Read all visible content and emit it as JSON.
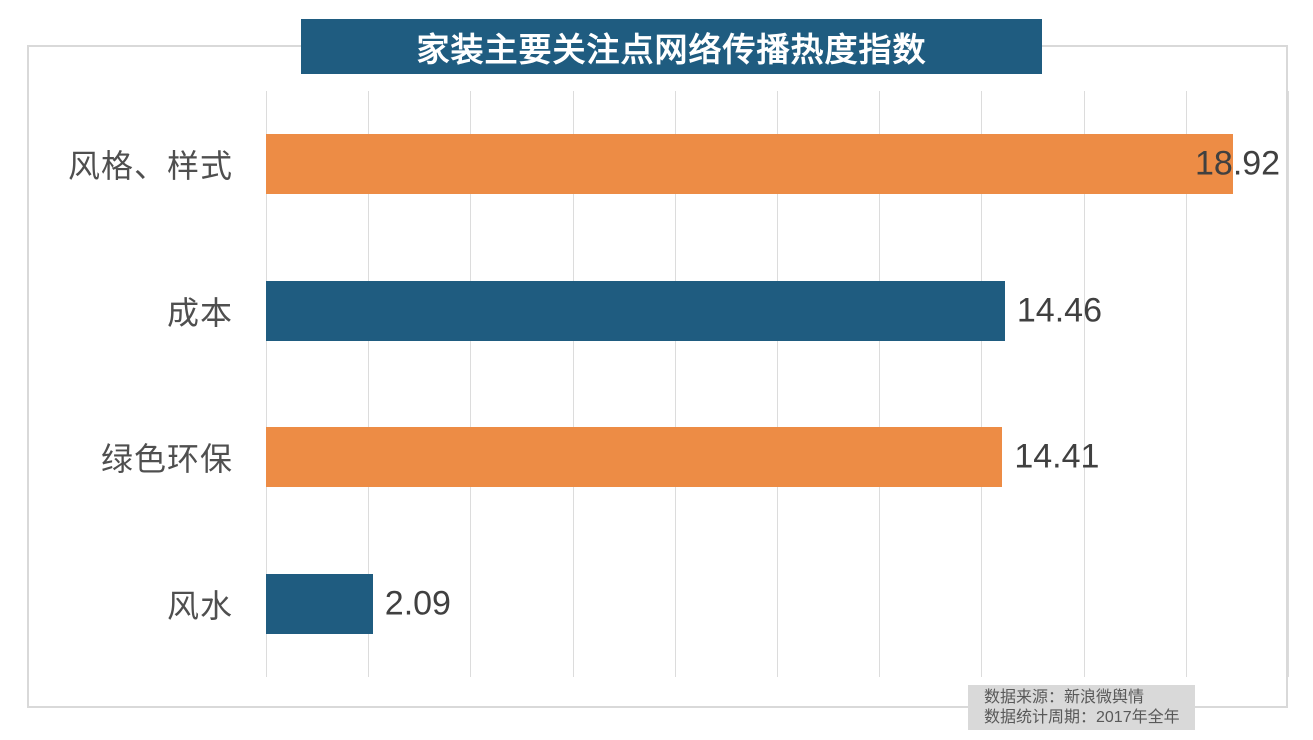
{
  "chart": {
    "title": "家装主要关注点网络传播热度指数",
    "source": {
      "line1": "数据来源：新浪微舆情",
      "line2": "2017年全年",
      "line2_prefix": "数据统计周期：",
      "line2_full": "数据统计周期：2017年全年"
    },
    "colors": {
      "banner_background": "#1F5C80",
      "teal_bar": "#1F5C80",
      "orange_bar": "#ED8C45",
      "gridline": "#DCDCDC",
      "chart_border": "#D9D9D9",
      "label_text": "#4F4F4F",
      "value_text": "#404040",
      "source_background": "#D9D9D9",
      "source_text": "#595959",
      "title_text": "#FFFFFF"
    }
  },
  "chart_data": {
    "type": "bar",
    "orientation": "horizontal",
    "title": "家装主要关注点网络传播热度指数",
    "categories": [
      "风格、样式",
      "成本",
      "绿色环保",
      "风水"
    ],
    "values": [
      18.92,
      14.46,
      14.41,
      2.09
    ],
    "value_labels": [
      "18.92",
      "14.46",
      "14.41",
      "2.09"
    ],
    "bar_colors": [
      "#ED8C45",
      "#1F5C80",
      "#ED8C45",
      "#1F5C80"
    ],
    "xlabel": "",
    "ylabel": "",
    "xlim": [
      0,
      20
    ],
    "gridline_interval": 2,
    "grid": true,
    "legend": false,
    "annotations": [
      "数据来源：新浪微舆情",
      "数据统计周期：2017年全年"
    ]
  }
}
